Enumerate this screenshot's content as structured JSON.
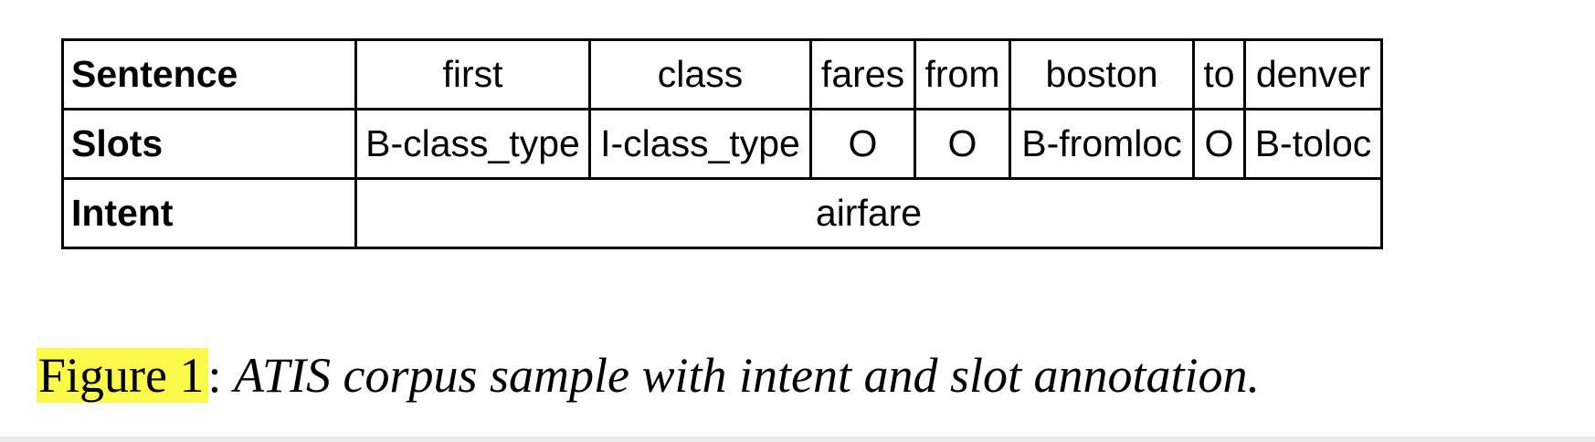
{
  "table": {
    "row_headers": [
      "Sentence",
      "Slots",
      "Intent"
    ],
    "sentence": [
      "first",
      "class",
      "fares",
      "from",
      "boston",
      "to",
      "denver"
    ],
    "slots": [
      "B-class_type",
      "I-class_type",
      "O",
      "O",
      "B-fromloc",
      "O",
      "B-toloc"
    ],
    "intent": "airfare"
  },
  "caption": {
    "label": "Figure 1",
    "separator": ":",
    "text": "ATIS corpus sample with intent and slot annotation."
  },
  "colors": {
    "highlight": "#fbf94a",
    "border": "#000000"
  }
}
